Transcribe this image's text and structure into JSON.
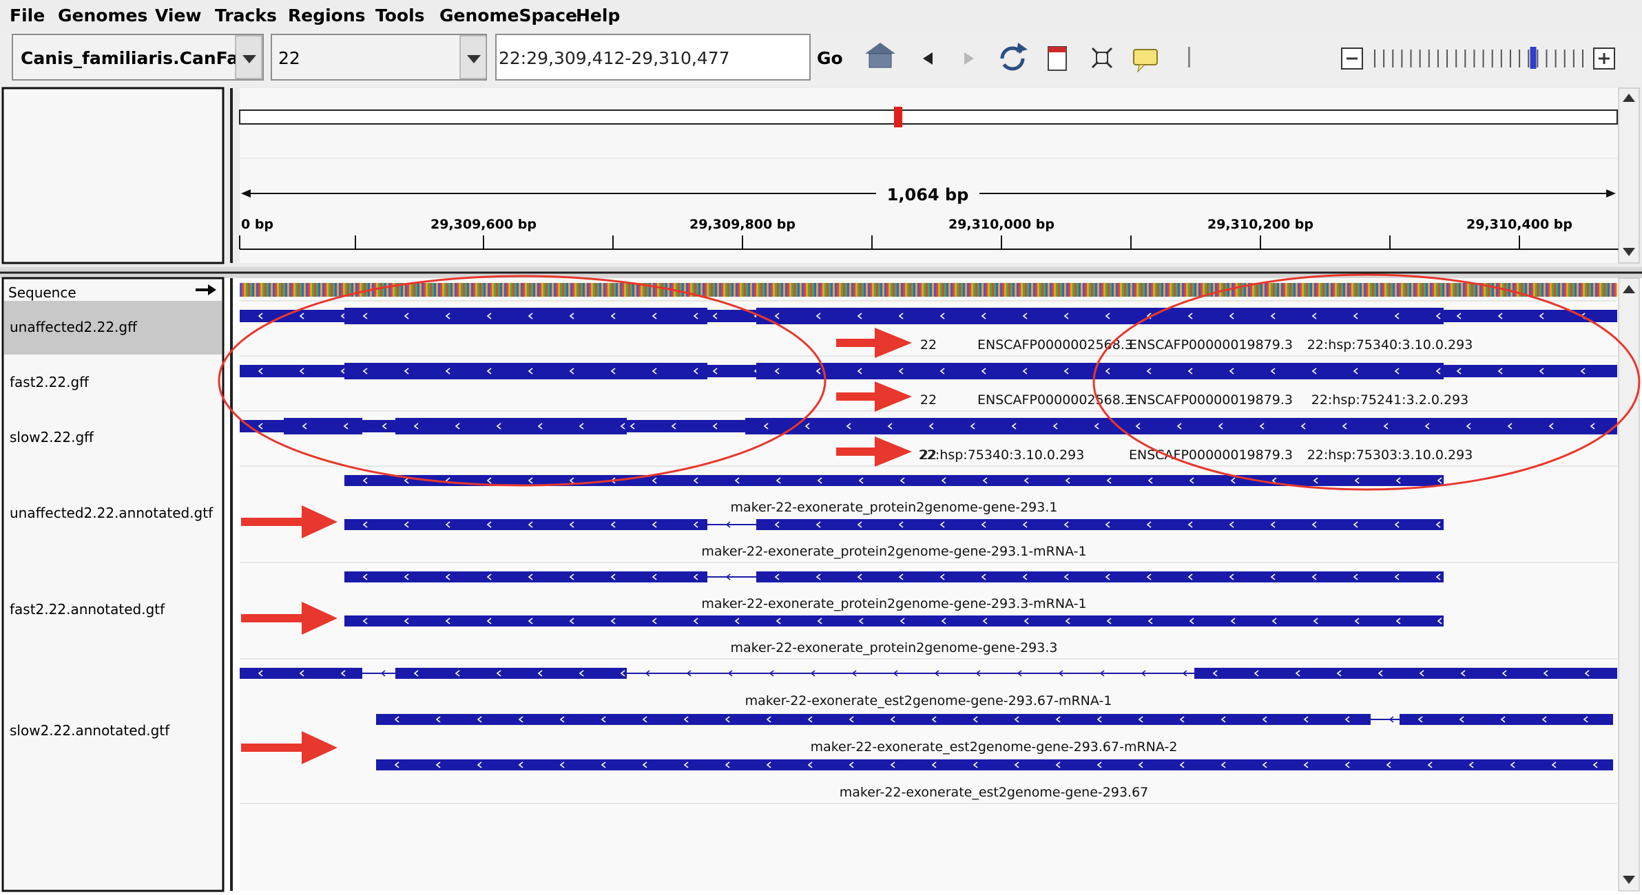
{
  "menu": [
    "File",
    "Genomes",
    "View",
    "Tracks",
    "Regions",
    "Tools",
    "GenomeSpace",
    "Help"
  ],
  "toolbar": {
    "genome": "Canis_familiaris.CanFa...",
    "chromosome": "22",
    "locus": "22:29,309,412-29,310,477",
    "go_label": "Go",
    "icons": [
      "home-icon",
      "back-icon",
      "forward-icon",
      "refresh-icon",
      "region-of-interest-icon",
      "fit-window-icon",
      "popup-info-icon"
    ],
    "zoom_icons": [
      "zoom-out-icon",
      "zoom-in-icon"
    ],
    "zoom_level": 0.76
  },
  "ruler": {
    "span_label": "1,064 bp",
    "ticks": [
      "0 bp",
      "29,309,600 bp",
      "29,309,800 bp",
      "29,310,000 bp",
      "29,310,200 bp",
      "29,310,400 bp"
    ]
  },
  "tracks": {
    "sequence": "Sequence",
    "unaffected_gff": "unaffected2.22.gff",
    "fast_gff": "fast2.22.gff",
    "slow_gff": "slow2.22.gff",
    "unaffected_gtf": "unaffected2.22.annotated.gtf",
    "fast_gtf": "fast2.22.annotated.gtf",
    "slow_gtf": "slow2.22.annotated.gtf"
  },
  "feature_labels": {
    "unaffected_gff": [
      "22",
      "ENSCAFP0000002568.3",
      "ENSCAFP00000019879.3",
      "22:hsp:75340:3.10.0.293"
    ],
    "fast_gff": [
      "22",
      "ENSCAFP0000002568.3",
      "ENSCAFP00000019879.3",
      "22:hsp:75241:3.2.0.293"
    ],
    "slow_gff": [
      "22",
      "22:hsp:75340:3.10.0.293",
      "ENSCAFP00000019879.3",
      "22:hsp:75303:3.10.0.293"
    ],
    "unaffected_gtf": [
      "maker-22-exonerate_protein2genome-gene-293.1",
      "maker-22-exonerate_protein2genome-gene-293.1-mRNA-1"
    ],
    "fast_gtf": [
      "maker-22-exonerate_protein2genome-gene-293.3-mRNA-1",
      "maker-22-exonerate_protein2genome-gene-293.3"
    ],
    "slow_gtf": [
      "maker-22-exonerate_est2genome-gene-293.67-mRNA-1",
      "maker-22-exonerate_est2genome-gene-293.67-mRNA-2",
      "maker-22-exonerate_est2genome-gene-293.67"
    ]
  },
  "colors": {
    "feature": "#1a1aaa",
    "annotation": "#e8372c",
    "selected_track": "#c8c8c8",
    "panel_bg": "#f7f7f7"
  }
}
